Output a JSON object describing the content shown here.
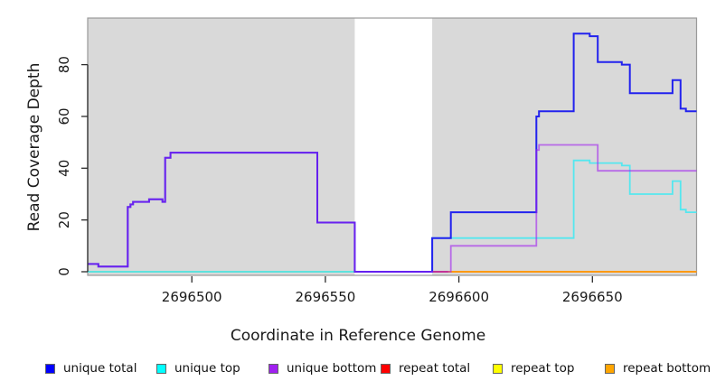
{
  "chart_data": {
    "type": "line",
    "subtype": "step-after-coverage",
    "title": "",
    "xlabel": "Coordinate in Reference Genome",
    "ylabel": "Read Coverage Depth",
    "xlim": [
      2696461,
      2696689
    ],
    "ylim": [
      0,
      98
    ],
    "x_ticks": [
      {
        "value": 2696500,
        "label": "2696500"
      },
      {
        "value": 2696550,
        "label": "2696550"
      },
      {
        "value": 2696600,
        "label": "2696600"
      },
      {
        "value": 2696650,
        "label": "2696650"
      }
    ],
    "y_ticks": [
      {
        "value": 0,
        "label": "0"
      },
      {
        "value": 20,
        "label": "20"
      },
      {
        "value": 40,
        "label": "40"
      },
      {
        "value": 60,
        "label": "60"
      },
      {
        "value": 80,
        "label": "80"
      }
    ],
    "grid": false,
    "legend_position": "bottom",
    "plot_background": "#FFFFFF",
    "covered_region_color": "#D9D9D9",
    "plot_border_color": "#999999",
    "axis_color": "#2b2b2b",
    "covered_regions": [
      {
        "from": 2696461,
        "to": 2696561
      },
      {
        "from": 2696590,
        "to": 2696689
      }
    ],
    "uncovered_gap": {
      "from": 2696561,
      "to": 2696590
    },
    "zero_line_segments": [
      {
        "from": 2696461,
        "to": 2696561,
        "color": "#86C986"
      },
      {
        "from": 2696590,
        "to": 2696596,
        "color": "#E63939"
      },
      {
        "from": 2696596,
        "to": 2696689,
        "color": "#FF9912"
      }
    ],
    "series": [
      {
        "name": "unique total",
        "legend_color": "#0000FF",
        "line_color": "#2222EE",
        "line_width": 2,
        "opacity": 1,
        "points": [
          [
            2696461,
            3
          ],
          [
            2696465,
            2
          ],
          [
            2696476,
            25
          ],
          [
            2696477,
            26
          ],
          [
            2696478,
            27
          ],
          [
            2696484,
            28
          ],
          [
            2696489,
            27
          ],
          [
            2696490,
            44
          ],
          [
            2696492,
            46
          ],
          [
            2696547,
            19
          ],
          [
            2696561,
            0
          ],
          [
            2696590,
            13
          ],
          [
            2696597,
            23
          ],
          [
            2696629,
            60
          ],
          [
            2696630,
            62
          ],
          [
            2696643,
            92
          ],
          [
            2696649,
            91
          ],
          [
            2696652,
            81
          ],
          [
            2696661,
            80
          ],
          [
            2696664,
            69
          ],
          [
            2696680,
            74
          ],
          [
            2696683,
            63
          ],
          [
            2696685,
            62
          ]
        ]
      },
      {
        "name": "unique top",
        "legend_color": "#00FFFF",
        "line_color": "#55E7EF",
        "line_width": 1.8,
        "opacity": 1,
        "points": [
          [
            2696461,
            0
          ],
          [
            2696590,
            13
          ],
          [
            2696643,
            43
          ],
          [
            2696649,
            42
          ],
          [
            2696661,
            41
          ],
          [
            2696664,
            30
          ],
          [
            2696680,
            35
          ],
          [
            2696683,
            24
          ],
          [
            2696685,
            23
          ]
        ]
      },
      {
        "name": "unique bottom",
        "legend_color": "#A020F0",
        "line_color": "#A020F0",
        "line_width": 1.8,
        "opacity": 0.6,
        "points": [
          [
            2696461,
            3
          ],
          [
            2696465,
            2
          ],
          [
            2696476,
            25
          ],
          [
            2696477,
            26
          ],
          [
            2696478,
            27
          ],
          [
            2696484,
            28
          ],
          [
            2696489,
            27
          ],
          [
            2696490,
            44
          ],
          [
            2696492,
            46
          ],
          [
            2696547,
            19
          ],
          [
            2696561,
            0
          ],
          [
            2696597,
            10
          ],
          [
            2696629,
            47
          ],
          [
            2696630,
            49
          ],
          [
            2696652,
            39
          ]
        ]
      },
      {
        "name": "repeat total",
        "legend_color": "#FF0000",
        "line_color": "#E63939",
        "line_width": 1.6,
        "opacity": 1,
        "points": [
          [
            2696461,
            0
          ]
        ]
      },
      {
        "name": "repeat top",
        "legend_color": "#FFFF00",
        "line_color": "#FFFF00",
        "line_width": 1.6,
        "opacity": 1,
        "points": [
          [
            2696461,
            0
          ]
        ]
      },
      {
        "name": "repeat bottom",
        "legend_color": "#FFA500",
        "line_color": "#FF9912",
        "line_width": 1.8,
        "opacity": 1,
        "points": [
          [
            2696461,
            0
          ]
        ]
      }
    ],
    "layers": [
      "series:3",
      "series:4",
      "series:5",
      "zero_segments",
      "series:1",
      "series:0",
      "series:2"
    ]
  },
  "legend_layout_offsets": [
    50,
    173,
    297,
    421,
    545,
    669
  ]
}
